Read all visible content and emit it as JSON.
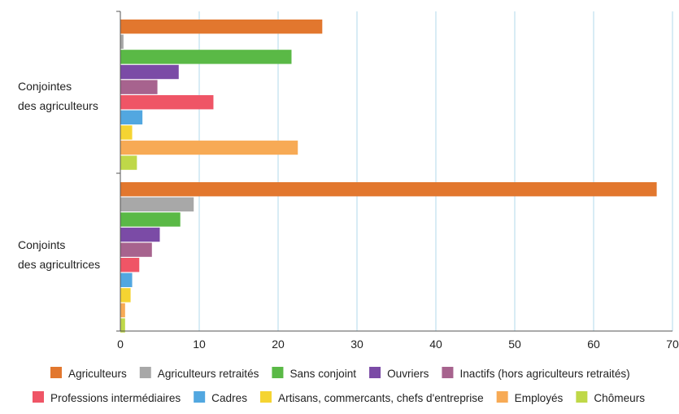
{
  "chart_data": {
    "type": "bar",
    "orientation": "horizontal",
    "categories": [
      "Conjointes des agriculteurs",
      "Conjoints des agricultrices"
    ],
    "category_lines": [
      [
        "Conjointes",
        "des agriculteurs"
      ],
      [
        "Conjoints",
        "des agricultrices"
      ]
    ],
    "xlim": [
      0,
      70
    ],
    "xticks": [
      0,
      10,
      20,
      30,
      40,
      50,
      60,
      70
    ],
    "grid": true,
    "legend_position": "bottom",
    "series": [
      {
        "name": "Agriculteurs",
        "color": "#E2772E",
        "values": [
          25.6,
          68.0
        ]
      },
      {
        "name": "Agriculteurs retraités",
        "color": "#A8A8A8",
        "values": [
          0.4,
          9.3
        ]
      },
      {
        "name": "Sans conjoint",
        "color": "#5AB946",
        "values": [
          21.7,
          7.6
        ]
      },
      {
        "name": "Ouvriers",
        "color": "#7B4BA6",
        "values": [
          7.4,
          5.0
        ]
      },
      {
        "name": "Inactifs (hors agriculteurs retraités)",
        "color": "#A7638E",
        "values": [
          4.7,
          4.0
        ]
      },
      {
        "name": "Professions intermédiaires",
        "color": "#EF5566",
        "values": [
          11.8,
          2.4
        ]
      },
      {
        "name": "Cadres",
        "color": "#52A7E0",
        "values": [
          2.8,
          1.5
        ]
      },
      {
        "name": "Artisans, commercants, chefs d'entreprise",
        "color": "#F5D432",
        "values": [
          1.5,
          1.3
        ]
      },
      {
        "name": "Employés",
        "color": "#F7AA55",
        "values": [
          22.5,
          0.6
        ]
      },
      {
        "name": "Chômeurs",
        "color": "#BFD848",
        "values": [
          2.1,
          0.6
        ]
      }
    ]
  }
}
